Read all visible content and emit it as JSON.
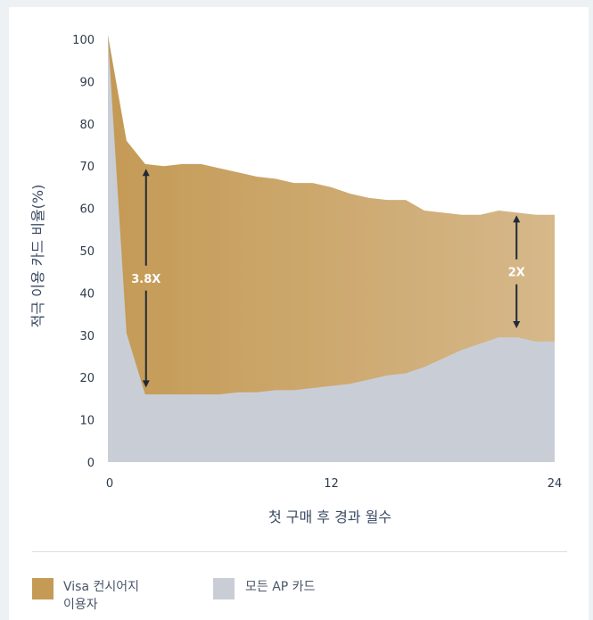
{
  "chart_data": {
    "type": "area",
    "title": "",
    "xlabel": "첫 구매 후 경과 월수",
    "ylabel": "적극 이용 카드 비율(%)",
    "xlim": [
      0,
      24
    ],
    "ylim": [
      0,
      100
    ],
    "x_ticks": [
      0,
      12,
      24
    ],
    "y_ticks": [
      0,
      10,
      20,
      30,
      40,
      50,
      60,
      70,
      80,
      90,
      100
    ],
    "x": [
      0,
      1,
      2,
      3,
      4,
      5,
      6,
      7,
      8,
      9,
      10,
      11,
      12,
      13,
      14,
      15,
      16,
      17,
      18,
      19,
      20,
      21,
      22,
      23,
      24
    ],
    "series": [
      {
        "name": "Visa 컨시어지 이용자",
        "color": "#c49a55",
        "values": [
          101,
          76,
          70.5,
          70,
          70.5,
          70.5,
          69.5,
          68.5,
          67.5,
          67,
          66,
          66,
          65,
          63.5,
          62.5,
          62,
          62,
          59.5,
          59,
          58.5,
          58.5,
          59.5,
          59,
          58.5,
          58.5
        ]
      },
      {
        "name": "모든 AP 카드",
        "color": "#c9ced6",
        "values": [
          101,
          30.5,
          16,
          16,
          16,
          16,
          16,
          16.5,
          16.5,
          17,
          17,
          17.5,
          18,
          18.5,
          19.5,
          20.5,
          21,
          22.5,
          24.5,
          26.5,
          28,
          29.5,
          29.5,
          28.5,
          28.5
        ]
      }
    ],
    "annotations": [
      {
        "label": "3.8X",
        "x": 2,
        "y_top": 70,
        "y_bottom": 17
      },
      {
        "label": "2X",
        "x": 22,
        "y_top": 59,
        "y_bottom": 31
      }
    ],
    "grid": false,
    "legend_position": "bottom"
  },
  "legend": {
    "visa_label_line1": "Visa 컨시어지",
    "visa_label_line2": "이용자",
    "ap_label": "모든 AP 카드"
  }
}
